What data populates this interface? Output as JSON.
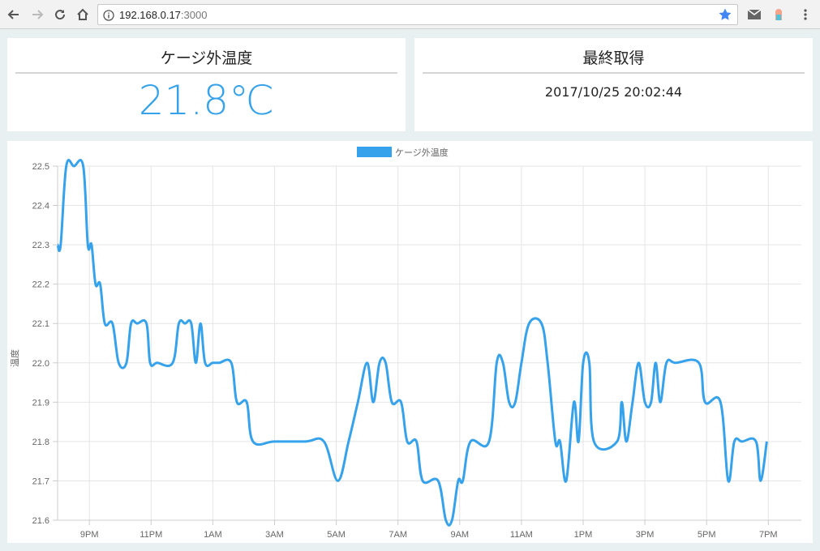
{
  "browser": {
    "url_host": "192.168.0.17",
    "url_port": ":3000"
  },
  "temperature_panel": {
    "title": "ケージ外温度",
    "value": "21.8℃"
  },
  "last_update_panel": {
    "title": "最終取得",
    "value": "2017/10/25 20:02:44"
  },
  "colors": {
    "accent": "#36a2eb",
    "page_bg": "#e9f0f2",
    "grid": "#e5e5e5"
  },
  "chart_data": {
    "type": "line",
    "legend": {
      "label": "ケージ外温度",
      "position": "top"
    },
    "ylabel": "温度",
    "xlabel": "",
    "ylim": [
      21.6,
      22.5
    ],
    "y_ticks": [
      "22.5",
      "22.4",
      "22.3",
      "22.2",
      "22.1",
      "22.0",
      "21.9",
      "21.8",
      "21.7",
      "21.6"
    ],
    "x_range": [
      19.97,
      44.07
    ],
    "x_ticks": [
      {
        "x": 21,
        "label": "9PM"
      },
      {
        "x": 23,
        "label": "11PM"
      },
      {
        "x": 25,
        "label": "1AM"
      },
      {
        "x": 27,
        "label": "3AM"
      },
      {
        "x": 29,
        "label": "5AM"
      },
      {
        "x": 31,
        "label": "7AM"
      },
      {
        "x": 33,
        "label": "9AM"
      },
      {
        "x": 35,
        "label": "11AM"
      },
      {
        "x": 37,
        "label": "1PM"
      },
      {
        "x": 39,
        "label": "3PM"
      },
      {
        "x": 41,
        "label": "5PM"
      },
      {
        "x": 43,
        "label": "7PM"
      }
    ],
    "series": [
      {
        "name": "ケージ外温度",
        "color": "#36a2eb",
        "points": [
          [
            19.97,
            22.3
          ],
          [
            20.07,
            22.3
          ],
          [
            20.25,
            22.5
          ],
          [
            20.5,
            22.5
          ],
          [
            20.8,
            22.5
          ],
          [
            20.95,
            22.3
          ],
          [
            21.07,
            22.3
          ],
          [
            21.2,
            22.2
          ],
          [
            21.35,
            22.2
          ],
          [
            21.5,
            22.1
          ],
          [
            21.75,
            22.1
          ],
          [
            21.95,
            22.0
          ],
          [
            22.2,
            22.0
          ],
          [
            22.35,
            22.1
          ],
          [
            22.55,
            22.1
          ],
          [
            22.85,
            22.1
          ],
          [
            22.97,
            22.0
          ],
          [
            23.2,
            22.0
          ],
          [
            23.7,
            22.0
          ],
          [
            23.9,
            22.1
          ],
          [
            24.1,
            22.1
          ],
          [
            24.3,
            22.1
          ],
          [
            24.45,
            22.0
          ],
          [
            24.6,
            22.1
          ],
          [
            24.75,
            22.0
          ],
          [
            25.0,
            22.0
          ],
          [
            25.2,
            22.0
          ],
          [
            25.6,
            22.0
          ],
          [
            25.78,
            21.9
          ],
          [
            26.1,
            21.9
          ],
          [
            26.3,
            21.8
          ],
          [
            27.0,
            21.8
          ],
          [
            28.0,
            21.8
          ],
          [
            28.6,
            21.8
          ],
          [
            29.05,
            21.7
          ],
          [
            29.4,
            21.8
          ],
          [
            29.7,
            21.9
          ],
          [
            30.0,
            22.0
          ],
          [
            30.2,
            21.9
          ],
          [
            30.4,
            22.0
          ],
          [
            30.6,
            22.0
          ],
          [
            30.8,
            21.9
          ],
          [
            31.1,
            21.9
          ],
          [
            31.3,
            21.8
          ],
          [
            31.6,
            21.8
          ],
          [
            31.8,
            21.7
          ],
          [
            32.3,
            21.7
          ],
          [
            32.55,
            21.6
          ],
          [
            32.75,
            21.6
          ],
          [
            32.95,
            21.7
          ],
          [
            33.1,
            21.7
          ],
          [
            33.35,
            21.8
          ],
          [
            33.95,
            21.8
          ],
          [
            34.2,
            22.0
          ],
          [
            34.4,
            22.0
          ],
          [
            34.6,
            21.9
          ],
          [
            34.8,
            21.9
          ],
          [
            35.0,
            22.0
          ],
          [
            35.25,
            22.1
          ],
          [
            35.65,
            22.1
          ],
          [
            35.85,
            22.0
          ],
          [
            36.1,
            21.8
          ],
          [
            36.25,
            21.8
          ],
          [
            36.45,
            21.7
          ],
          [
            36.7,
            21.9
          ],
          [
            36.85,
            21.8
          ],
          [
            37.0,
            22.0
          ],
          [
            37.2,
            22.0
          ],
          [
            37.35,
            21.8
          ],
          [
            38.1,
            21.8
          ],
          [
            38.25,
            21.9
          ],
          [
            38.4,
            21.8
          ],
          [
            38.6,
            21.9
          ],
          [
            38.8,
            22.0
          ],
          [
            39.0,
            21.9
          ],
          [
            39.2,
            21.9
          ],
          [
            39.35,
            22.0
          ],
          [
            39.5,
            21.9
          ],
          [
            39.7,
            22.0
          ],
          [
            40.0,
            22.0
          ],
          [
            40.75,
            22.0
          ],
          [
            40.95,
            21.9
          ],
          [
            41.45,
            21.9
          ],
          [
            41.7,
            21.7
          ],
          [
            41.9,
            21.8
          ],
          [
            42.15,
            21.8
          ],
          [
            42.6,
            21.8
          ],
          [
            42.75,
            21.7
          ],
          [
            42.95,
            21.8
          ]
        ]
      }
    ]
  }
}
